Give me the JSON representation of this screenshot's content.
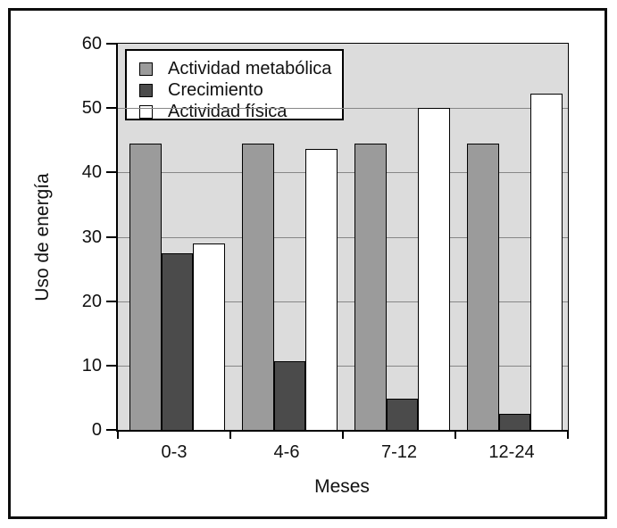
{
  "figure": {
    "background": "#ffffff",
    "frame_border_color": "#0d0d0d"
  },
  "chart_data": {
    "type": "bar",
    "categories": [
      "0-3",
      "4-6",
      "7-12",
      "12-24"
    ],
    "series": [
      {
        "name": "Actividad metabólica",
        "color": "#9b9b9b",
        "values": [
          44.5,
          44.5,
          44.5,
          44.5
        ]
      },
      {
        "name": "Crecimiento",
        "color": "#4b4b4b",
        "values": [
          27.5,
          10.7,
          4.8,
          2.5
        ]
      },
      {
        "name": "Actividad física",
        "color": "#ffffff",
        "values": [
          29,
          43.7,
          50,
          52.3
        ]
      }
    ],
    "xlabel": "Meses",
    "ylabel": "Uso de energía",
    "ylim": [
      0,
      60
    ],
    "yticks": [
      0,
      10,
      20,
      30,
      40,
      50,
      60
    ],
    "grid": true,
    "grid_color": "#878787",
    "plot_background": "#dcdcdc",
    "bar_outline": "#000000",
    "legend": {
      "position": "top-left",
      "background": "#ffffff",
      "border_color": "#000000"
    }
  }
}
